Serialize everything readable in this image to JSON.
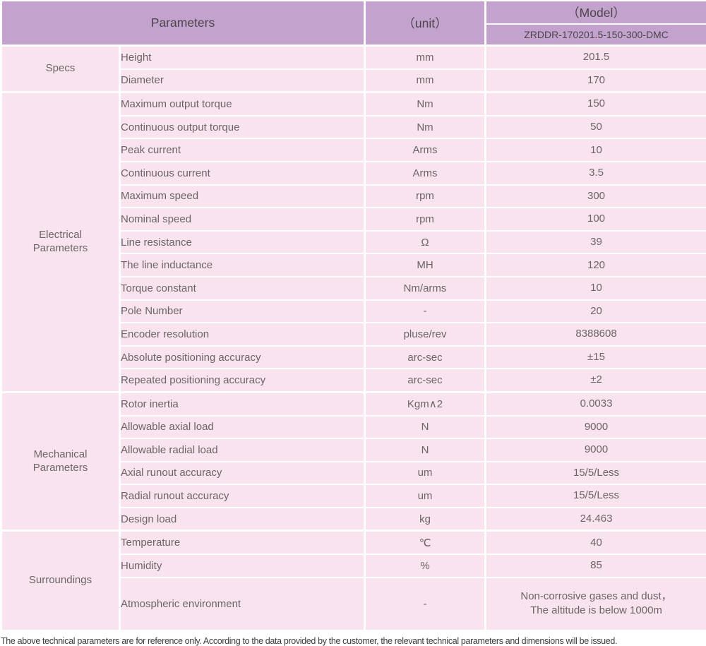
{
  "colors": {
    "header_bg": "#c3a3cd",
    "row_bg": "#f9e3ee",
    "divider": "#ffffff",
    "header_text": "#4c464b",
    "body_text": "#6b6568",
    "footnote_text": "#3e3c3d"
  },
  "table": {
    "header": {
      "parameters_label": "Parameters",
      "unit_label": "（unit）",
      "model_label": "（Model）",
      "model_value": "ZRDDR-170201.5-150-300-DMC"
    },
    "sections": [
      {
        "name": "Specs",
        "rows": [
          {
            "parameter": "Height",
            "unit": "mm",
            "value": "201.5"
          },
          {
            "parameter": "Diameter",
            "unit": "mm",
            "value": "170"
          }
        ]
      },
      {
        "name": "Electrical\nParameters",
        "rows": [
          {
            "parameter": "Maximum output torque",
            "unit": "Nm",
            "value": "150"
          },
          {
            "parameter": "Continuous output torque",
            "unit": "Nm",
            "value": "50"
          },
          {
            "parameter": "Peak current",
            "unit": "Arms",
            "value": "10"
          },
          {
            "parameter": "Continuous current",
            "unit": "Arms",
            "value": "3.5"
          },
          {
            "parameter": "Maximum speed",
            "unit": "rpm",
            "value": "300"
          },
          {
            "parameter": "Nominal speed",
            "unit": "rpm",
            "value": "100"
          },
          {
            "parameter": "Line resistance",
            "unit": "Ω",
            "value": "39"
          },
          {
            "parameter": "The line inductance",
            "unit": "MH",
            "value": "120"
          },
          {
            "parameter": "Torque constant",
            "unit": "Nm/arms",
            "value": "10"
          },
          {
            "parameter": "Pole Number",
            "unit": "-",
            "value": "20"
          },
          {
            "parameter": "Encoder resolution",
            "unit": "pluse/rev",
            "value": "8388608"
          },
          {
            "parameter": "Absolute positioning accuracy",
            "unit": "arc-sec",
            "value": "±15"
          },
          {
            "parameter": "Repeated positioning accuracy",
            "unit": "arc-sec",
            "value": "±2"
          }
        ]
      },
      {
        "name": "Mechanical\nParameters",
        "rows": [
          {
            "parameter": "Rotor inertia",
            "unit": "Kgm∧2",
            "value": "0.0033"
          },
          {
            "parameter": "Allowable axial load",
            "unit": "N",
            "value": "9000"
          },
          {
            "parameter": "Allowable radial load",
            "unit": "N",
            "value": "9000"
          },
          {
            "parameter": "Axial runout accuracy",
            "unit": "um",
            "value": "15/5/Less"
          },
          {
            "parameter": "Radial runout accuracy",
            "unit": "um",
            "value": "15/5/Less"
          },
          {
            "parameter": "Design load",
            "unit": "kg",
            "value": "24.463"
          }
        ]
      },
      {
        "name": "Surroundings",
        "rows": [
          {
            "parameter": "Temperature",
            "unit": "℃",
            "value": "40"
          },
          {
            "parameter": "Humidity",
            "unit": "%",
            "value": "85"
          },
          {
            "parameter": "Atmospheric environment",
            "unit": "-",
            "value": "Non-corrosive gases and dust，\nThe altitude is below 1000m",
            "tall": true
          }
        ]
      }
    ]
  },
  "footnote": "The above technical parameters are for reference only. According to the data provided by the customer, the relevant technical parameters and dimensions will be issued."
}
